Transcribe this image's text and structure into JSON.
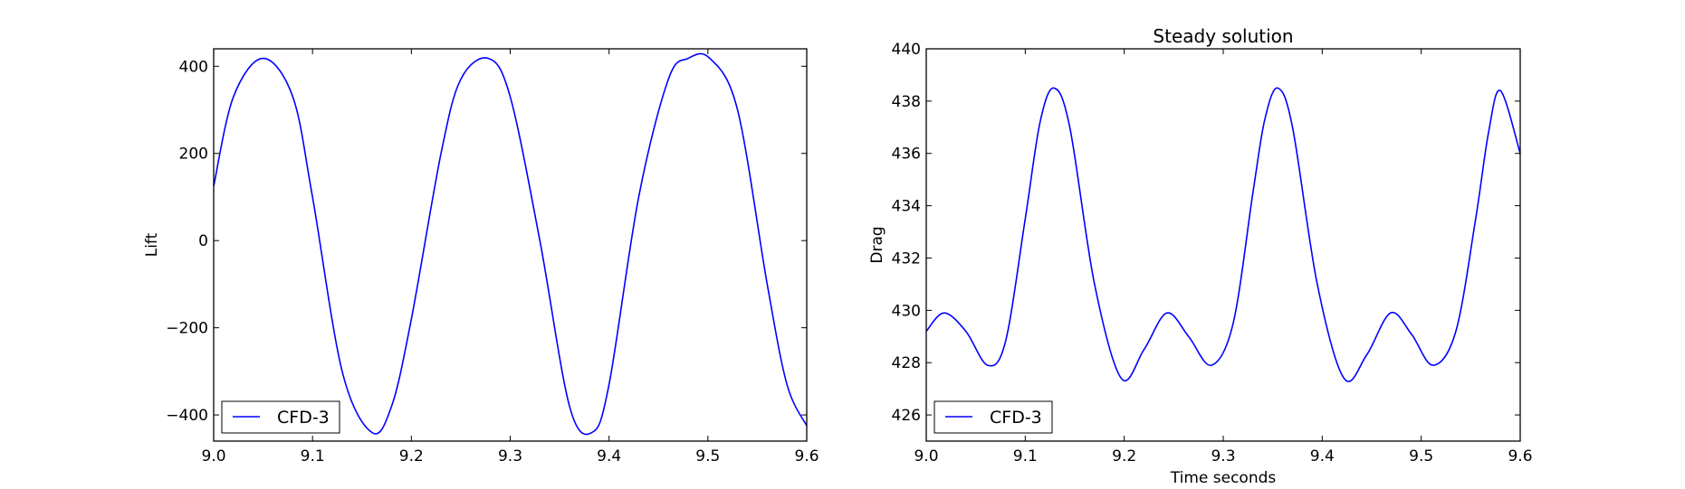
{
  "figure": {
    "background": "#ffffff"
  },
  "chart_data": [
    {
      "type": "line",
      "title": "",
      "xlabel": "",
      "ylabel": "Lift",
      "xlim": [
        9.0,
        9.6
      ],
      "ylim": [
        -460,
        440
      ],
      "xticks": [
        9.0,
        9.1,
        9.2,
        9.3,
        9.4,
        9.5,
        9.6
      ],
      "xtick_labels": [
        "9.0",
        "9.1",
        "9.2",
        "9.3",
        "9.4",
        "9.5",
        "9.6"
      ],
      "yticks": [
        400,
        200,
        0,
        -200,
        -400
      ],
      "ytick_labels": [
        "400",
        "200",
        "0",
        "−200",
        "−400"
      ],
      "grid": false,
      "legend_position": "lower-left",
      "series": [
        {
          "name": "CFD-3",
          "color": "#0000ff",
          "x": [
            9.0,
            9.02,
            9.05,
            9.08,
            9.1,
            9.13,
            9.16,
            9.18,
            9.2,
            9.23,
            9.25,
            9.278,
            9.3,
            9.33,
            9.36,
            9.383,
            9.4,
            9.43,
            9.46,
            9.48,
            9.502,
            9.53,
            9.56,
            9.58,
            9.6
          ],
          "y": [
            125,
            330,
            418,
            330,
            100,
            -300,
            -440,
            -380,
            -180,
            200,
            370,
            418,
            330,
            0,
            -380,
            -440,
            -330,
            100,
            370,
            418,
            418,
            300,
            -100,
            -330,
            -425
          ]
        }
      ]
    },
    {
      "type": "line",
      "title": "Steady solution",
      "xlabel": "Time seconds",
      "ylabel": "Drag",
      "xlim": [
        9.0,
        9.6
      ],
      "ylim": [
        425,
        440
      ],
      "xticks": [
        9.0,
        9.1,
        9.2,
        9.3,
        9.4,
        9.5,
        9.6
      ],
      "xtick_labels": [
        "9.0",
        "9.1",
        "9.2",
        "9.3",
        "9.4",
        "9.5",
        "9.6"
      ],
      "yticks": [
        440,
        438,
        436,
        434,
        432,
        430,
        428,
        426
      ],
      "ytick_labels": [
        "440",
        "438",
        "436",
        "434",
        "432",
        "430",
        "428",
        "426"
      ],
      "grid": false,
      "legend_position": "lower-left",
      "series": [
        {
          "name": "CFD-3",
          "color": "#0000ff",
          "x": [
            9.0,
            9.018,
            9.04,
            9.062,
            9.08,
            9.1,
            9.115,
            9.129,
            9.145,
            9.17,
            9.197,
            9.22,
            9.243,
            9.265,
            9.288,
            9.31,
            9.33,
            9.342,
            9.355,
            9.37,
            9.395,
            9.422,
            9.445,
            9.469,
            9.49,
            9.512,
            9.535,
            9.555,
            9.568,
            9.58,
            9.6
          ],
          "y": [
            429.2,
            429.9,
            429.2,
            427.9,
            428.8,
            433.5,
            437.2,
            438.5,
            437.0,
            431.0,
            427.4,
            428.5,
            429.9,
            429.0,
            427.9,
            429.5,
            434.5,
            437.3,
            438.5,
            437.0,
            431.0,
            427.4,
            428.3,
            429.9,
            429.1,
            427.9,
            429.2,
            433.5,
            436.8,
            438.4,
            436.0
          ]
        }
      ]
    }
  ]
}
